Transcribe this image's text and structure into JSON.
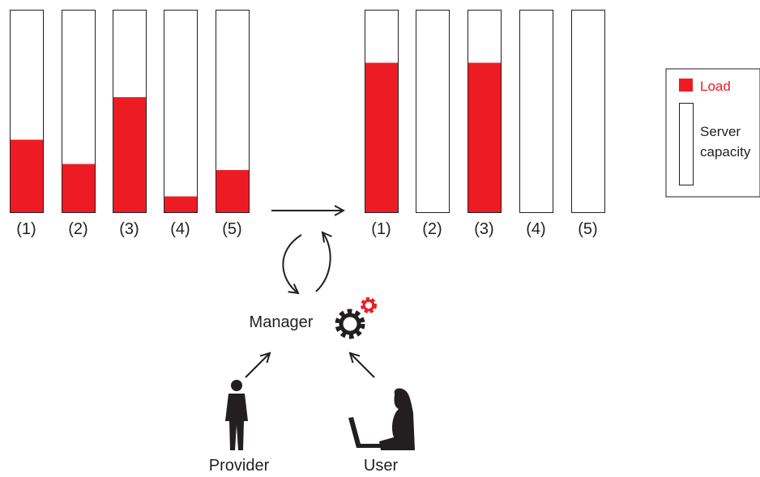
{
  "before": {
    "servers": [
      {
        "label": "(1)",
        "load": 36
      },
      {
        "label": "(2)",
        "load": 24
      },
      {
        "label": "(3)",
        "load": 57
      },
      {
        "label": "(4)",
        "load": 8
      },
      {
        "label": "(5)",
        "load": 21
      }
    ]
  },
  "after": {
    "servers": [
      {
        "label": "(1)",
        "load": 74
      },
      {
        "label": "(2)",
        "load": 0
      },
      {
        "label": "(3)",
        "load": 74
      },
      {
        "label": "(4)",
        "load": 0
      },
      {
        "label": "(5)",
        "load": 0
      }
    ]
  },
  "manager": "Manager",
  "provider": "Provider",
  "user": "User",
  "legend": {
    "load": "Load",
    "capacity": [
      "Server",
      "capacity"
    ]
  }
}
